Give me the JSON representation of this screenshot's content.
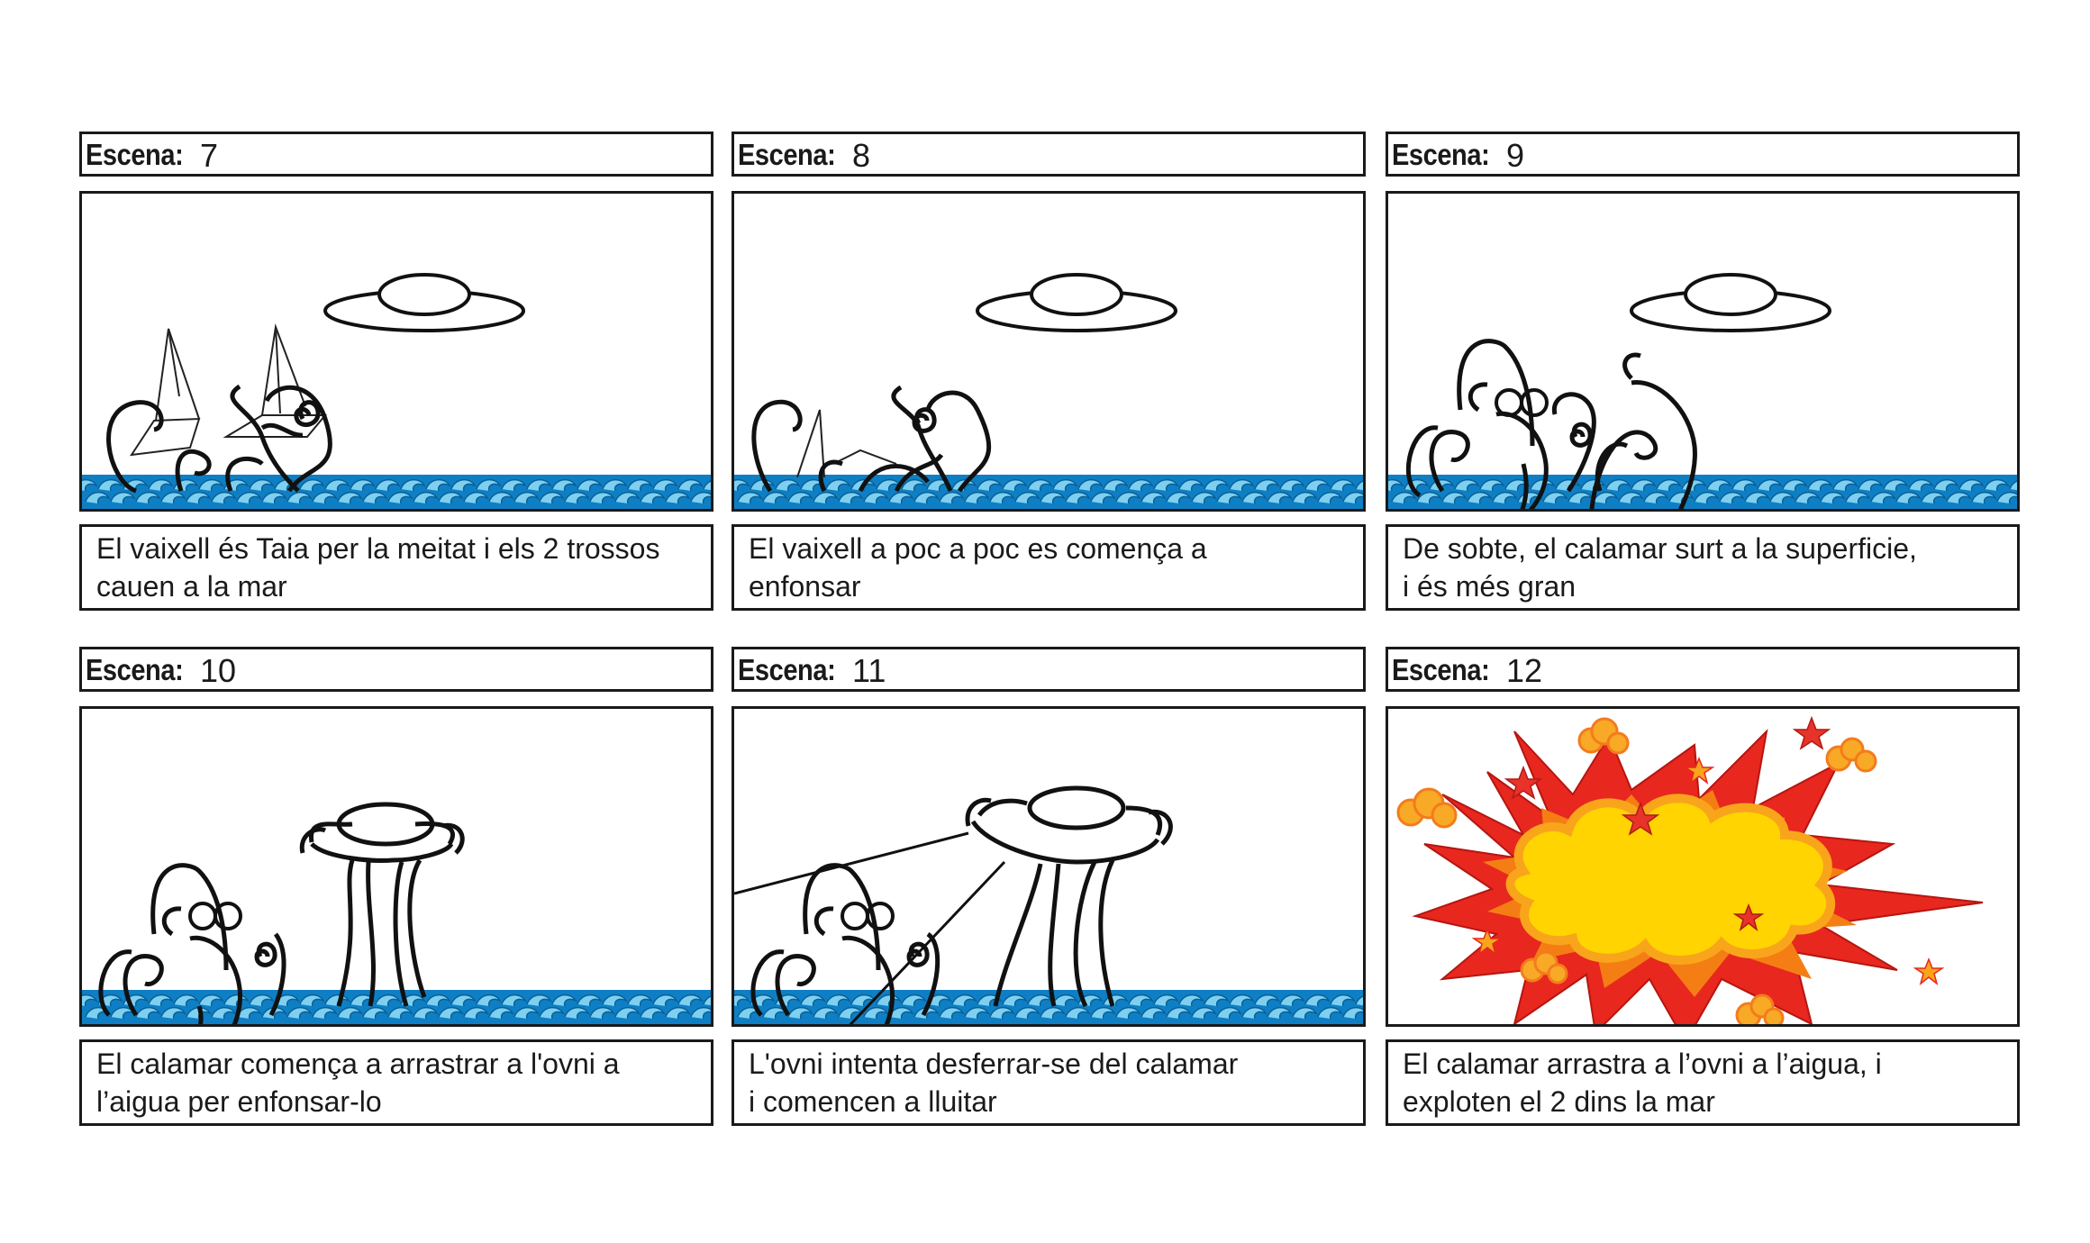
{
  "scene_label": "Escena:",
  "scenes": [
    {
      "number": "7",
      "caption": [
        "El vaixell és Taia per la meitat i els 2 trossos",
        "cauen a la mar"
      ]
    },
    {
      "number": "8",
      "caption": [
        "El vaixell a poc a poc es comença a",
        "enfonsar"
      ]
    },
    {
      "number": "9",
      "caption": [
        "De sobte, el calamar surt a la superficie,",
        "i és més gran"
      ]
    },
    {
      "number": "10",
      "caption": [
        "El calamar comença a arrastrar a l'ovni a",
        "l’aigua per enfonsar-lo"
      ]
    },
    {
      "number": "11",
      "caption": [
        "L'ovni intenta desferrar-se del calamar",
        "i comencen a lluitar"
      ]
    },
    {
      "number": "12",
      "caption": [
        "El calamar arrastra a l’ovni a l’aigua, i",
        "exploten el 2 dins la mar"
      ]
    }
  ],
  "colors": {
    "water": "#0e7fc4",
    "water_light": "#7fd0f0",
    "explosion_red": "#e8271e",
    "explosion_yellow": "#ffd400",
    "star": "#e8332a"
  }
}
